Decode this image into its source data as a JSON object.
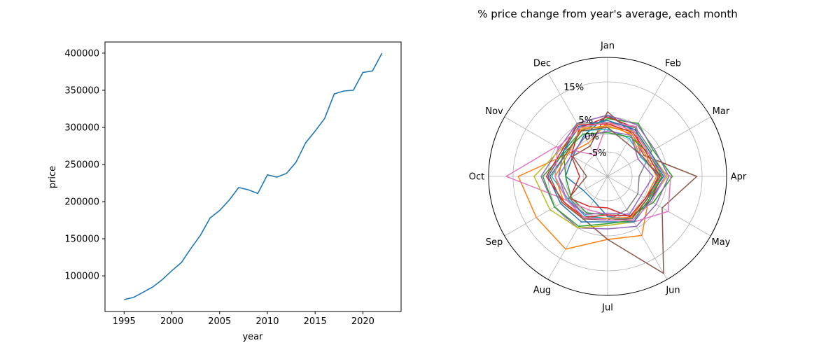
{
  "chart_data": [
    {
      "type": "line",
      "title": "",
      "xlabel": "year",
      "ylabel": "price",
      "xlim": [
        1993,
        2024
      ],
      "ylim": [
        52000,
        415000
      ],
      "xticks": [
        1995,
        2000,
        2005,
        2010,
        2015,
        2020
      ],
      "yticks": [
        100000,
        150000,
        200000,
        250000,
        300000,
        350000,
        400000
      ],
      "grid": false,
      "color": "#1f77b4",
      "x": [
        1995,
        1996,
        1997,
        1998,
        1999,
        2000,
        2001,
        2002,
        2003,
        2004,
        2005,
        2006,
        2007,
        2008,
        2009,
        2010,
        2011,
        2012,
        2013,
        2014,
        2015,
        2016,
        2017,
        2018,
        2019,
        2020,
        2021,
        2022
      ],
      "y": [
        68000,
        71000,
        78000,
        85000,
        95000,
        107000,
        118000,
        137000,
        155000,
        178000,
        188000,
        202000,
        219000,
        216000,
        211000,
        236000,
        233000,
        238000,
        253000,
        279000,
        295000,
        312000,
        345000,
        349000,
        350000,
        374000,
        376000,
        400000
      ]
    },
    {
      "type": "radar",
      "title": "% price change from year's average, each month",
      "categories": [
        "Jan",
        "Feb",
        "Mar",
        "Apr",
        "May",
        "Jun",
        "Jul",
        "Aug",
        "Sep",
        "Oct",
        "Nov",
        "Dec"
      ],
      "r_min": -12,
      "r_max": 22,
      "r_ticks": [
        -5,
        0,
        5,
        15
      ],
      "r_tick_labels": [
        "-5%",
        "0%",
        "5%",
        "15%"
      ],
      "grid": true,
      "series_colors": [
        "#1f77b4",
        "#ff7f0e",
        "#2ca02c",
        "#d62728",
        "#9467bd",
        "#8c564b",
        "#e377c2",
        "#7f7f7f",
        "#bcbd22",
        "#17becf"
      ],
      "series": [
        {
          "values": [
            5.5,
            3.0,
            1.5,
            4.0,
            1.0,
            2.0,
            -0.5,
            -4.0,
            -4.0,
            0.0,
            -0.5,
            1.5
          ]
        },
        {
          "values": [
            3.5,
            1.5,
            -1.0,
            3.0,
            1.5,
            7.5,
            6.0,
            12.0,
            11.5,
            13.5,
            1.0,
            -1.0
          ]
        },
        {
          "values": [
            4.5,
            5.5,
            3.0,
            6.5,
            3.0,
            1.0,
            -1.0,
            0.0,
            0.0,
            0.0,
            2.5,
            3.0
          ]
        },
        {
          "values": [
            5.0,
            4.0,
            -1.0,
            3.5,
            2.0,
            1.5,
            -3.0,
            -2.0,
            0.5,
            -4.0,
            0.0,
            4.0
          ]
        },
        {
          "values": [
            5.5,
            5.0,
            3.5,
            5.5,
            4.0,
            4.5,
            3.0,
            5.0,
            5.5,
            7.0,
            4.0,
            5.5
          ]
        },
        {
          "values": [
            6.5,
            2.0,
            0.0,
            13.5,
            6.0,
            20.0,
            6.0,
            2.0,
            1.0,
            -6.0,
            -0.5,
            -2.0
          ]
        },
        {
          "values": [
            3.5,
            4.5,
            -1.0,
            6.0,
            8.0,
            3.0,
            -1.0,
            -1.0,
            1.5,
            17.0,
            5.0,
            -5.0
          ]
        },
        {
          "values": [
            3.5,
            4.0,
            2.5,
            -3.0,
            -2.0,
            -1.0,
            0.5,
            1.0,
            0.5,
            2.0,
            2.5,
            5.5
          ]
        },
        {
          "values": [
            2.0,
            3.0,
            2.0,
            5.0,
            2.0,
            3.0,
            2.0,
            5.0,
            7.0,
            9.0,
            3.5,
            4.0
          ]
        },
        {
          "values": [
            1.5,
            0.5,
            -1.0,
            3.0,
            1.0,
            2.0,
            0.0,
            1.0,
            1.0,
            4.0,
            1.5,
            3.0
          ]
        },
        {
          "values": [
            4.0,
            3.5,
            2.0,
            4.5,
            2.0,
            3.0,
            1.0,
            3.0,
            3.5,
            5.0,
            2.5,
            4.5
          ]
        },
        {
          "values": [
            2.5,
            2.0,
            0.5,
            2.0,
            0.5,
            1.5,
            0.0,
            2.0,
            2.5,
            3.0,
            1.0,
            3.5
          ]
        },
        {
          "values": [
            0.5,
            1.0,
            1.5,
            3.5,
            1.5,
            2.5,
            1.5,
            4.5,
            5.5,
            6.5,
            2.0,
            2.0
          ]
        },
        {
          "values": [
            3.0,
            2.5,
            1.0,
            3.0,
            0.5,
            1.0,
            -1.0,
            1.5,
            2.5,
            5.5,
            3.0,
            5.0
          ]
        },
        {
          "values": [
            1.0,
            1.5,
            -2.0,
            1.0,
            -1.0,
            0.5,
            -1.5,
            0.5,
            1.5,
            2.0,
            0.0,
            1.0
          ]
        },
        {
          "values": [
            2.0,
            -1.0,
            -0.5,
            2.5,
            1.0,
            2.0,
            0.5,
            2.0,
            3.0,
            4.5,
            1.5,
            3.0
          ]
        },
        {
          "values": [
            3.5,
            3.0,
            1.5,
            4.5,
            2.5,
            2.5,
            0.5,
            1.5,
            1.5,
            3.0,
            4.5,
            4.0
          ]
        }
      ]
    }
  ]
}
